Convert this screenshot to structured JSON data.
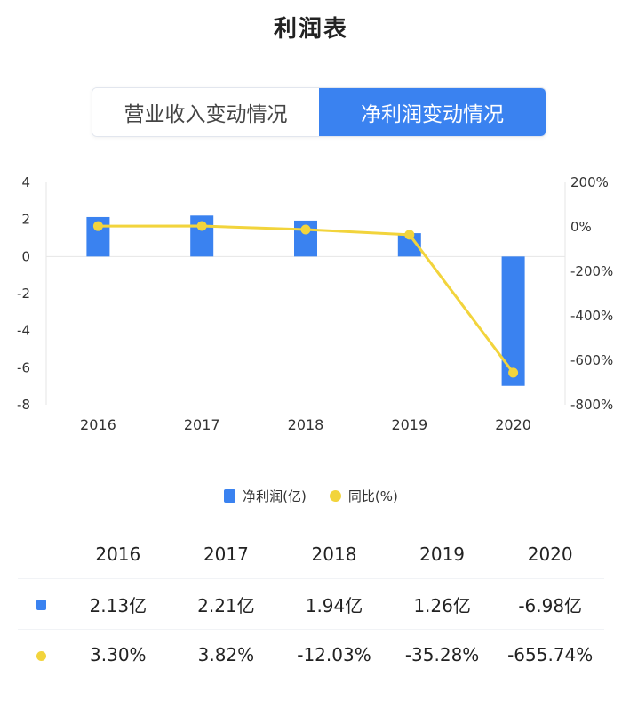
{
  "page": {
    "title": "利润表"
  },
  "tabs": [
    {
      "label": "营业收入变动情况",
      "active": false
    },
    {
      "label": "净利润变动情况",
      "active": true
    }
  ],
  "colors": {
    "bar": "#3a82f0",
    "line": "#f2d43c",
    "axis_text": "#333333",
    "grid": "#e6e6e6"
  },
  "chart_data": {
    "type": "bar+line",
    "categories": [
      "2016",
      "2017",
      "2018",
      "2019",
      "2020"
    ],
    "series": [
      {
        "name": "净利润(亿)",
        "type": "bar",
        "axis": "left",
        "values": [
          2.13,
          2.21,
          1.94,
          1.26,
          -6.98
        ]
      },
      {
        "name": "同比(%)",
        "type": "line",
        "axis": "right",
        "values": [
          3.3,
          3.82,
          -12.03,
          -35.28,
          -655.74
        ]
      }
    ],
    "y_left": {
      "min": -8,
      "max": 4,
      "ticks": [
        "4",
        "2",
        "0",
        "-2",
        "-4",
        "-6",
        "-8"
      ]
    },
    "y_right": {
      "min": -800,
      "max": 200,
      "ticks": [
        "200%",
        "0%",
        "-200%",
        "-400%",
        "-600%",
        "-800%"
      ]
    },
    "legend_position": "bottom"
  },
  "legend": [
    {
      "label": "净利润(亿)"
    },
    {
      "label": "同比(%)"
    }
  ],
  "table": {
    "years": [
      "2016",
      "2017",
      "2018",
      "2019",
      "2020"
    ],
    "profit": [
      "2.13亿",
      "2.21亿",
      "1.94亿",
      "1.26亿",
      "-6.98亿"
    ],
    "yoy": [
      "3.30%",
      "3.82%",
      "-12.03%",
      "-35.28%",
      "-655.74%"
    ]
  }
}
